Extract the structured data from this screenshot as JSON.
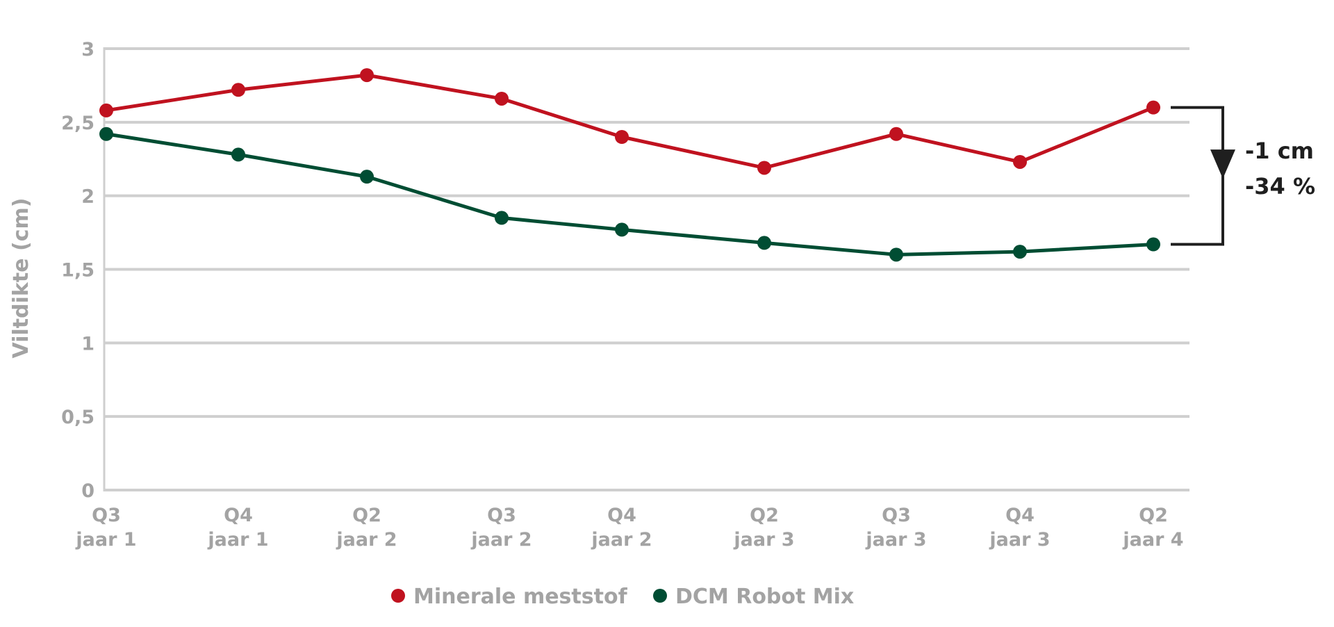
{
  "chart_data": {
    "type": "line",
    "ylabel": "Viltdikte (cm)",
    "xlabel": "",
    "ylim": [
      0,
      3
    ],
    "yticks": [
      "0",
      "0,5",
      "1",
      "1,5",
      "2",
      "2,5",
      "3"
    ],
    "ytick_values": [
      0,
      0.5,
      1,
      1.5,
      2,
      2.5,
      3
    ],
    "categories": [
      {
        "quarter": "Q3",
        "year": "jaar 1"
      },
      {
        "quarter": "Q4",
        "year": "jaar 1"
      },
      {
        "quarter": "Q2",
        "year": "jaar 2"
      },
      {
        "quarter": "Q3",
        "year": "jaar 2"
      },
      {
        "quarter": "Q4",
        "year": "jaar 2"
      },
      {
        "quarter": "Q2",
        "year": "jaar 3"
      },
      {
        "quarter": "Q3",
        "year": "jaar 3"
      },
      {
        "quarter": "Q4",
        "year": "jaar 3"
      },
      {
        "quarter": "Q2",
        "year": "jaar 4"
      }
    ],
    "series": [
      {
        "name": "Minerale meststof",
        "color": "#c0121f",
        "values": [
          2.58,
          2.72,
          2.82,
          2.66,
          2.4,
          2.19,
          2.42,
          2.23,
          2.6
        ]
      },
      {
        "name": "DCM Robot Mix",
        "color": "#004d33",
        "values": [
          2.42,
          2.28,
          2.13,
          1.85,
          1.77,
          1.68,
          1.6,
          1.62,
          1.67
        ]
      }
    ],
    "grid": true,
    "legend": "bottom",
    "annotation": {
      "line1": "-1 cm",
      "line2": "-34 %",
      "color": "#1f1f1f"
    }
  }
}
